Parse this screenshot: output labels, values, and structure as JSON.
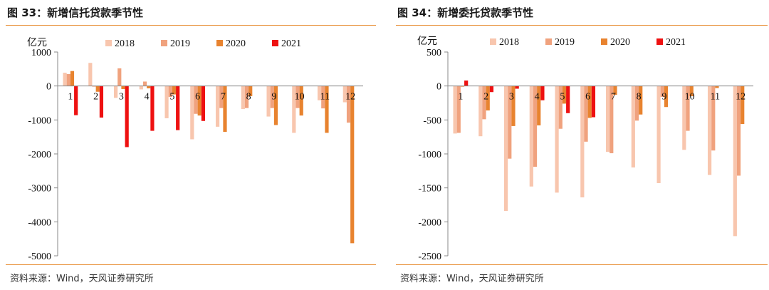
{
  "colors": {
    "accent_rule": "#e8913a",
    "2018": "#f8c6ae",
    "2019": "#f0a27e",
    "2020": "#e8832f",
    "2021": "#ee1111"
  },
  "chart_data": [
    {
      "type": "bar",
      "title": "图 33：新增信托贷款季节性",
      "ylabel": "亿元",
      "ylim": [
        -5000,
        1000
      ],
      "yticks": [
        1000,
        0,
        -1000,
        -2000,
        -3000,
        -4000,
        -5000
      ],
      "ytick_labels": [
        "1000",
        "0",
        "-1000",
        "-2000",
        "-3000",
        "-4000",
        "-5000"
      ],
      "categories": [
        "1",
        "2",
        "3",
        "4",
        "5",
        "6",
        "7",
        "8",
        "9",
        "10",
        "11",
        "12"
      ],
      "legend_position": "top",
      "grid": false,
      "series": [
        {
          "name": "2018",
          "color": "#f8c6ae",
          "values": [
            390,
            680,
            -350,
            -100,
            -950,
            -1570,
            -1200,
            -680,
            -900,
            -1380,
            -420,
            -480
          ]
        },
        {
          "name": "2019",
          "color": "#f0a27e",
          "values": [
            350,
            -20,
            520,
            130,
            -320,
            -820,
            -650,
            -650,
            -650,
            -650,
            -660,
            -1080
          ]
        },
        {
          "name": "2020",
          "color": "#e8832f",
          "values": [
            440,
            -170,
            -90,
            -70,
            -250,
            -870,
            -1350,
            -300,
            -1150,
            -870,
            -1380,
            -4630
          ]
        },
        {
          "name": "2021",
          "color": "#ee1111",
          "values": [
            -860,
            -930,
            -1800,
            -1320,
            -1300,
            -1030,
            null,
            null,
            null,
            null,
            null,
            null
          ]
        }
      ],
      "source": "资料来源：Wind，天风证券研究所"
    },
    {
      "type": "bar",
      "title": "图 34：新增委托贷款季节性",
      "ylabel": "亿元",
      "ylim": [
        -2500,
        500
      ],
      "yticks": [
        500,
        0,
        -500,
        -1000,
        -1500,
        -2000,
        -2500
      ],
      "ytick_labels": [
        "500",
        "0",
        "-500",
        "-1000",
        "-1500",
        "-2000",
        "-2500"
      ],
      "categories": [
        "1",
        "2",
        "3",
        "4",
        "5",
        "6",
        "7",
        "8",
        "9",
        "10",
        "11",
        "12"
      ],
      "legend_position": "top",
      "grid": false,
      "series": [
        {
          "name": "2018",
          "color": "#f8c6ae",
          "values": [
            -700,
            -740,
            -1840,
            -1480,
            -1570,
            -1640,
            -970,
            -1200,
            -1430,
            -940,
            -1310,
            -2210
          ]
        },
        {
          "name": "2019",
          "color": "#f0a27e",
          "values": [
            -690,
            -490,
            -1070,
            -1190,
            -630,
            -820,
            -990,
            -510,
            -160,
            -660,
            -950,
            -1320
          ]
        },
        {
          "name": "2020",
          "color": "#e8832f",
          "values": [
            -10,
            -360,
            -590,
            -580,
            -260,
            -470,
            -130,
            -420,
            -310,
            -150,
            -30,
            -560
          ]
        },
        {
          "name": "2021",
          "color": "#ee1111",
          "values": [
            80,
            -90,
            -40,
            -210,
            -400,
            -460,
            null,
            null,
            null,
            null,
            null,
            null
          ]
        }
      ],
      "source": "资料来源：Wind，天风证券研究所"
    }
  ]
}
